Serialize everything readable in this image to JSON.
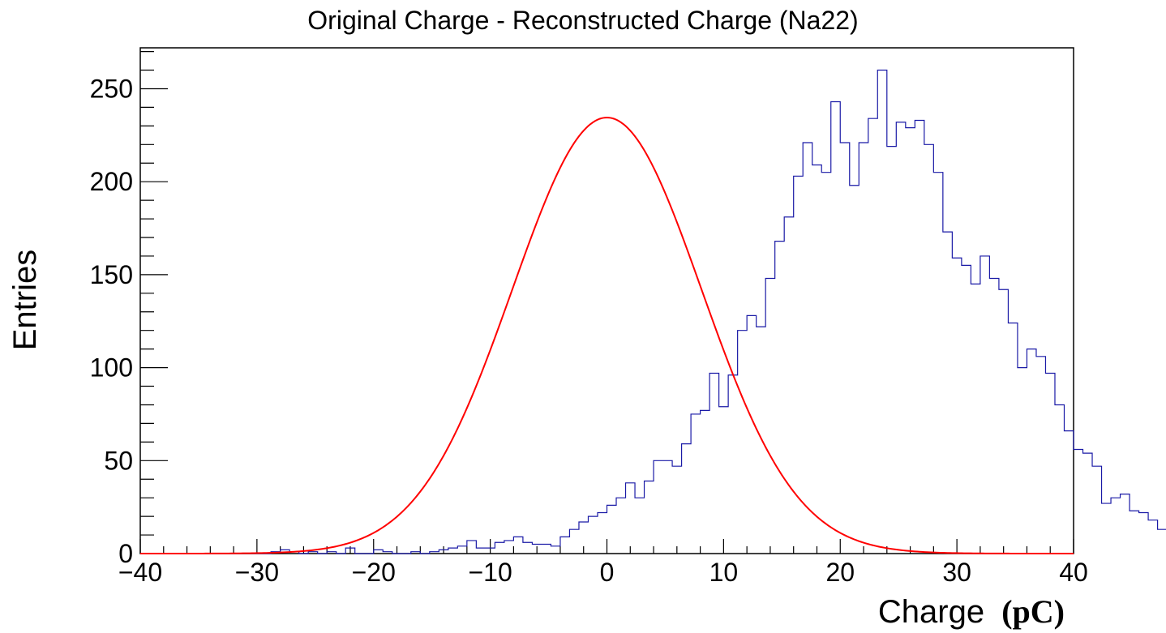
{
  "chart_data": {
    "type": "histogram",
    "title": "Original Charge - Reconstructed Charge (Na22)",
    "xlabel": "Charge",
    "xlabel_unit": "(pC)",
    "ylabel": "Entries",
    "xlim": [
      -40,
      40
    ],
    "ylim": [
      0,
      272
    ],
    "grid": false,
    "x_ticks": [
      -40,
      -30,
      -20,
      -10,
      0,
      10,
      20,
      30,
      40
    ],
    "x_tick_labels": [
      "−40",
      "−30",
      "−20",
      "−10",
      "0",
      "10",
      "20",
      "30",
      "40"
    ],
    "y_ticks": [
      0,
      50,
      100,
      150,
      200,
      250
    ],
    "y_tick_labels": [
      "0",
      "50",
      "100",
      "150",
      "200",
      "250"
    ],
    "bin_width": 0.8,
    "bin_start": -40,
    "series": [
      {
        "name": "Histogram",
        "color": "#1a1aa6",
        "values": [
          0,
          0,
          0,
          0,
          0,
          0,
          0,
          0,
          0,
          0,
          0,
          0,
          0,
          0,
          1,
          2,
          1,
          0,
          1,
          0,
          1,
          0,
          3,
          0,
          0,
          2,
          1,
          0,
          0,
          1,
          0,
          1,
          2,
          3,
          4,
          7,
          3,
          3,
          6,
          7,
          9,
          6,
          5,
          5,
          4,
          9,
          13,
          17,
          20,
          22,
          26,
          30,
          38,
          30,
          39,
          50,
          50,
          47,
          59,
          75,
          77,
          97,
          79,
          96,
          120,
          128,
          122,
          148,
          168,
          181,
          203,
          221,
          209,
          205,
          243,
          221,
          198,
          221,
          234,
          260,
          219,
          232,
          229,
          233,
          220,
          205,
          173,
          159,
          155,
          145,
          160,
          148,
          142,
          124,
          100,
          110,
          106,
          97,
          80,
          66,
          56,
          54,
          47,
          27,
          30,
          32,
          23,
          22,
          18,
          13,
          8,
          8,
          7,
          5,
          6,
          5,
          3,
          2,
          1,
          1,
          0,
          0,
          0,
          0,
          1,
          0,
          0,
          1,
          0,
          0,
          0,
          0,
          0,
          0,
          0,
          0,
          0,
          0,
          0,
          0
        ]
      },
      {
        "name": "Gaussian fit",
        "color": "#ff0000",
        "function": "gauss",
        "amplitude": 234.5,
        "mean": 0.0,
        "sigma": 8.1
      }
    ]
  }
}
